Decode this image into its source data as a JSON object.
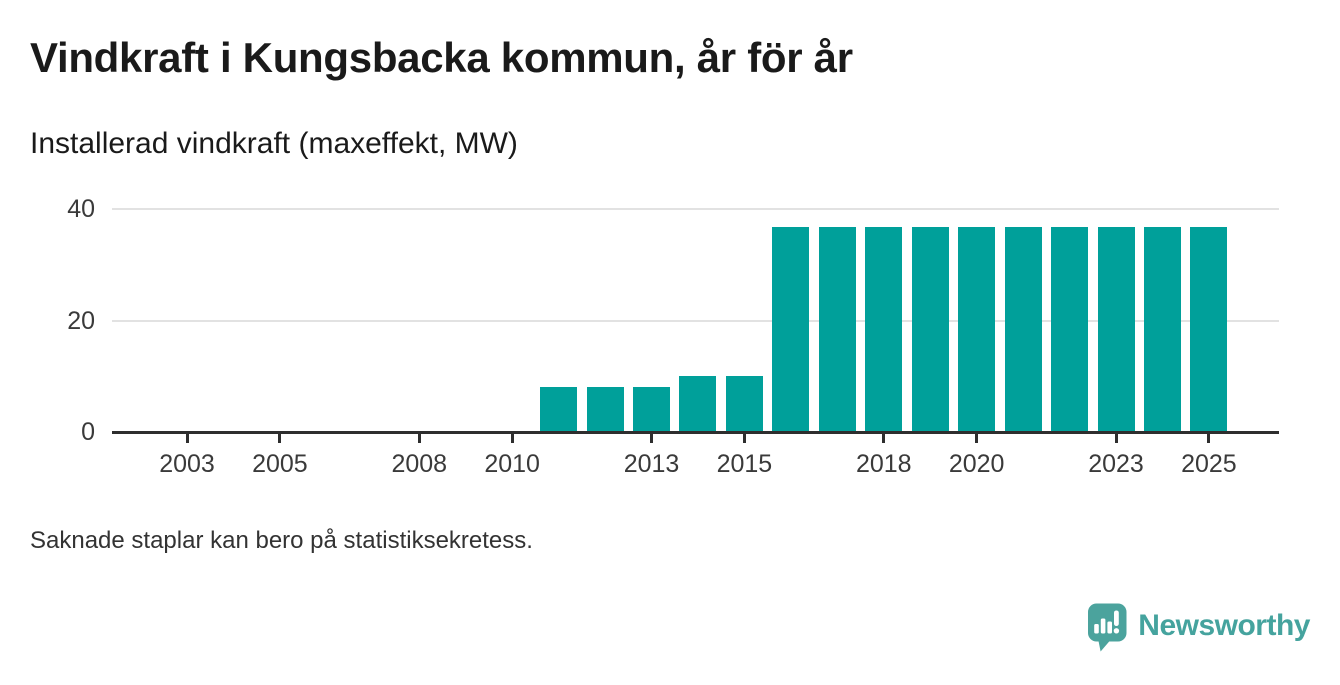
{
  "chart_data": {
    "type": "bar",
    "title": "Vindkraft i Kungsbacka kommun, år för år",
    "subtitle": "Installerad vindkraft (maxeffekt, MW)",
    "unit": "MW",
    "x": [
      2001,
      2002,
      2003,
      2004,
      2005,
      2006,
      2007,
      2008,
      2009,
      2010,
      2011,
      2012,
      2013,
      2014,
      2015,
      2016,
      2017,
      2018,
      2019,
      2020,
      2021,
      2022,
      2023,
      2024,
      2025
    ],
    "values": [
      null,
      null,
      null,
      null,
      null,
      null,
      null,
      null,
      null,
      null,
      8,
      8,
      8,
      10,
      10,
      36.7,
      36.7,
      36.7,
      36.7,
      36.7,
      36.7,
      36.7,
      36.7,
      36.7,
      36.7
    ],
    "x_tick_labels": [
      "2003",
      "2005",
      "2008",
      "2010",
      "2013",
      "2015",
      "2018",
      "2020",
      "2023",
      "2025"
    ],
    "yticks": [
      0,
      20,
      40
    ],
    "ylim": [
      0,
      43
    ],
    "xlabel": "",
    "ylabel": "Installerad vindkraft (maxeffekt, MW)",
    "grid": "horizontal",
    "legend": "none",
    "bar_color": "#00a09a",
    "note": "Saknade staplar kan bero på statistiksekretess."
  },
  "brand": {
    "name": "Newsworthy",
    "color": "#45a39e",
    "icon": "newsworthy-speech-bubble-bar-chart-icon"
  },
  "colors": {
    "bar": "#00a09a",
    "axis": "#2e2e2e",
    "gridline": "#e2e2e2",
    "tick_label": "#3a3a3a",
    "title": "#1a1a1a",
    "note_text": "#333333",
    "brand": "#45a39e",
    "background": "#ffffff"
  }
}
